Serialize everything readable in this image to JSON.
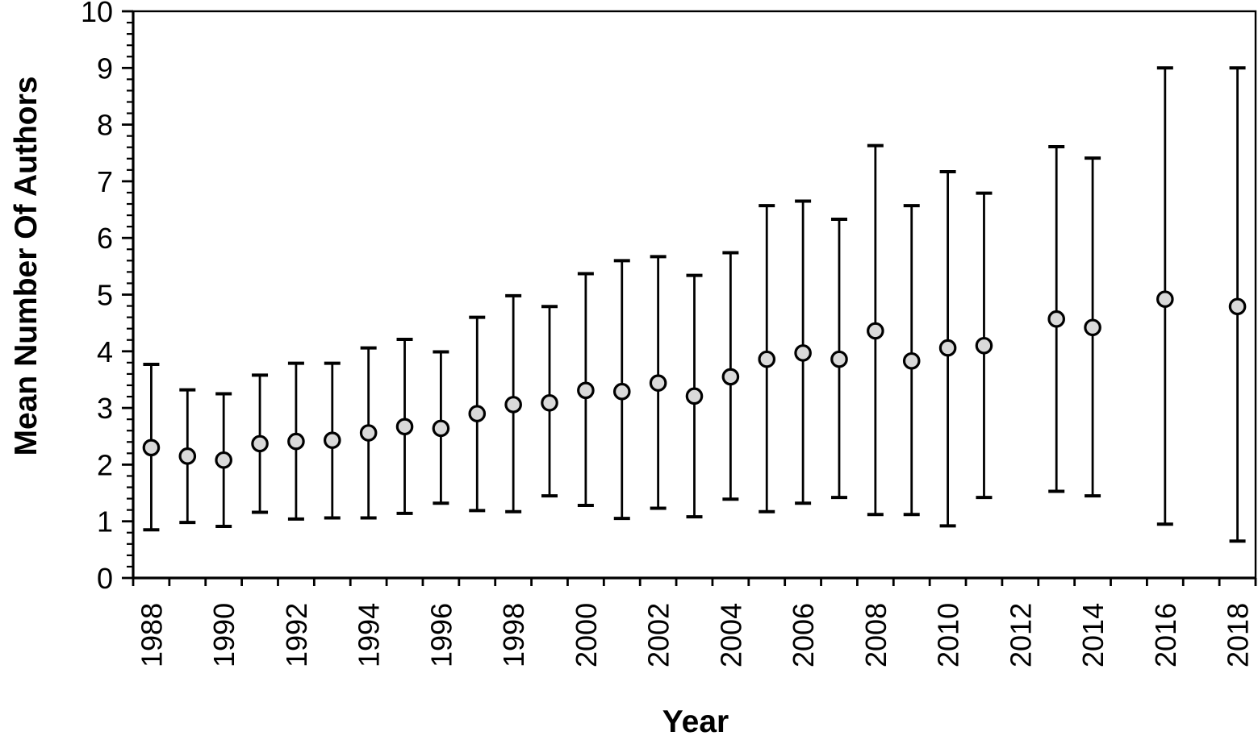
{
  "chart_data": {
    "type": "scatter",
    "title": "",
    "xlabel": "Year",
    "ylabel": "Mean Number Of Authors",
    "ylim": [
      0,
      10
    ],
    "y_major_tick_step": 1,
    "y_minor_tick_step": 0.2,
    "grid": "off",
    "legend": "none",
    "x_categories": [
      1988,
      1989,
      1990,
      1991,
      1992,
      1993,
      1994,
      1995,
      1996,
      1997,
      1998,
      1999,
      2000,
      2001,
      2002,
      2003,
      2004,
      2005,
      2006,
      2007,
      2008,
      2009,
      2010,
      2011,
      2012,
      2013,
      2014,
      2015,
      2016,
      2017,
      2018
    ],
    "x_tick_labels": [
      "1988",
      "1990",
      "1992",
      "1994",
      "1996",
      "1998",
      "2000",
      "2002",
      "2004",
      "2006",
      "2008",
      "2010",
      "2012",
      "2014",
      "2016",
      "2018"
    ],
    "missing_years": [
      2012,
      2015,
      2017
    ],
    "points": [
      {
        "year": 1988,
        "mean": 2.3,
        "err_low": 0.85,
        "err_high": 3.77
      },
      {
        "year": 1989,
        "mean": 2.15,
        "err_low": 0.98,
        "err_high": 3.32
      },
      {
        "year": 1990,
        "mean": 2.08,
        "err_low": 0.91,
        "err_high": 3.25
      },
      {
        "year": 1991,
        "mean": 2.37,
        "err_low": 1.16,
        "err_high": 3.58
      },
      {
        "year": 1992,
        "mean": 2.41,
        "err_low": 1.04,
        "err_high": 3.79
      },
      {
        "year": 1993,
        "mean": 2.43,
        "err_low": 1.06,
        "err_high": 3.79
      },
      {
        "year": 1994,
        "mean": 2.56,
        "err_low": 1.06,
        "err_high": 4.06
      },
      {
        "year": 1995,
        "mean": 2.67,
        "err_low": 1.14,
        "err_high": 4.21
      },
      {
        "year": 1996,
        "mean": 2.64,
        "err_low": 1.32,
        "err_high": 3.99
      },
      {
        "year": 1997,
        "mean": 2.9,
        "err_low": 1.19,
        "err_high": 4.6
      },
      {
        "year": 1998,
        "mean": 3.06,
        "err_low": 1.17,
        "err_high": 4.98
      },
      {
        "year": 1999,
        "mean": 3.09,
        "err_low": 1.45,
        "err_high": 4.79
      },
      {
        "year": 2000,
        "mean": 3.31,
        "err_low": 1.28,
        "err_high": 5.37
      },
      {
        "year": 2001,
        "mean": 3.29,
        "err_low": 1.05,
        "err_high": 5.6
      },
      {
        "year": 2002,
        "mean": 3.44,
        "err_low": 1.23,
        "err_high": 5.67
      },
      {
        "year": 2003,
        "mean": 3.21,
        "err_low": 1.08,
        "err_high": 5.34
      },
      {
        "year": 2004,
        "mean": 3.55,
        "err_low": 1.39,
        "err_high": 5.74
      },
      {
        "year": 2005,
        "mean": 3.86,
        "err_low": 1.17,
        "err_high": 6.57
      },
      {
        "year": 2006,
        "mean": 3.97,
        "err_low": 1.32,
        "err_high": 6.65
      },
      {
        "year": 2007,
        "mean": 3.86,
        "err_low": 1.42,
        "err_high": 6.33
      },
      {
        "year": 2008,
        "mean": 4.36,
        "err_low": 1.12,
        "err_high": 7.63
      },
      {
        "year": 2009,
        "mean": 3.83,
        "err_low": 1.12,
        "err_high": 6.57
      },
      {
        "year": 2010,
        "mean": 4.06,
        "err_low": 0.92,
        "err_high": 7.17
      },
      {
        "year": 2011,
        "mean": 4.1,
        "err_low": 1.42,
        "err_high": 6.79
      },
      {
        "year": 2013,
        "mean": 4.57,
        "err_low": 1.53,
        "err_high": 7.61
      },
      {
        "year": 2014,
        "mean": 4.42,
        "err_low": 1.45,
        "err_high": 7.41
      },
      {
        "year": 2016,
        "mean": 4.92,
        "err_low": 0.95,
        "err_high": 9.0
      },
      {
        "year": 2018,
        "mean": 4.79,
        "err_low": 0.65,
        "err_high": 9.0
      }
    ],
    "colors": {
      "marker_fill": "#d9d9d9",
      "marker_stroke": "#000000",
      "error_bar": "#000000",
      "axis": "#000000",
      "background": "#ffffff"
    }
  }
}
